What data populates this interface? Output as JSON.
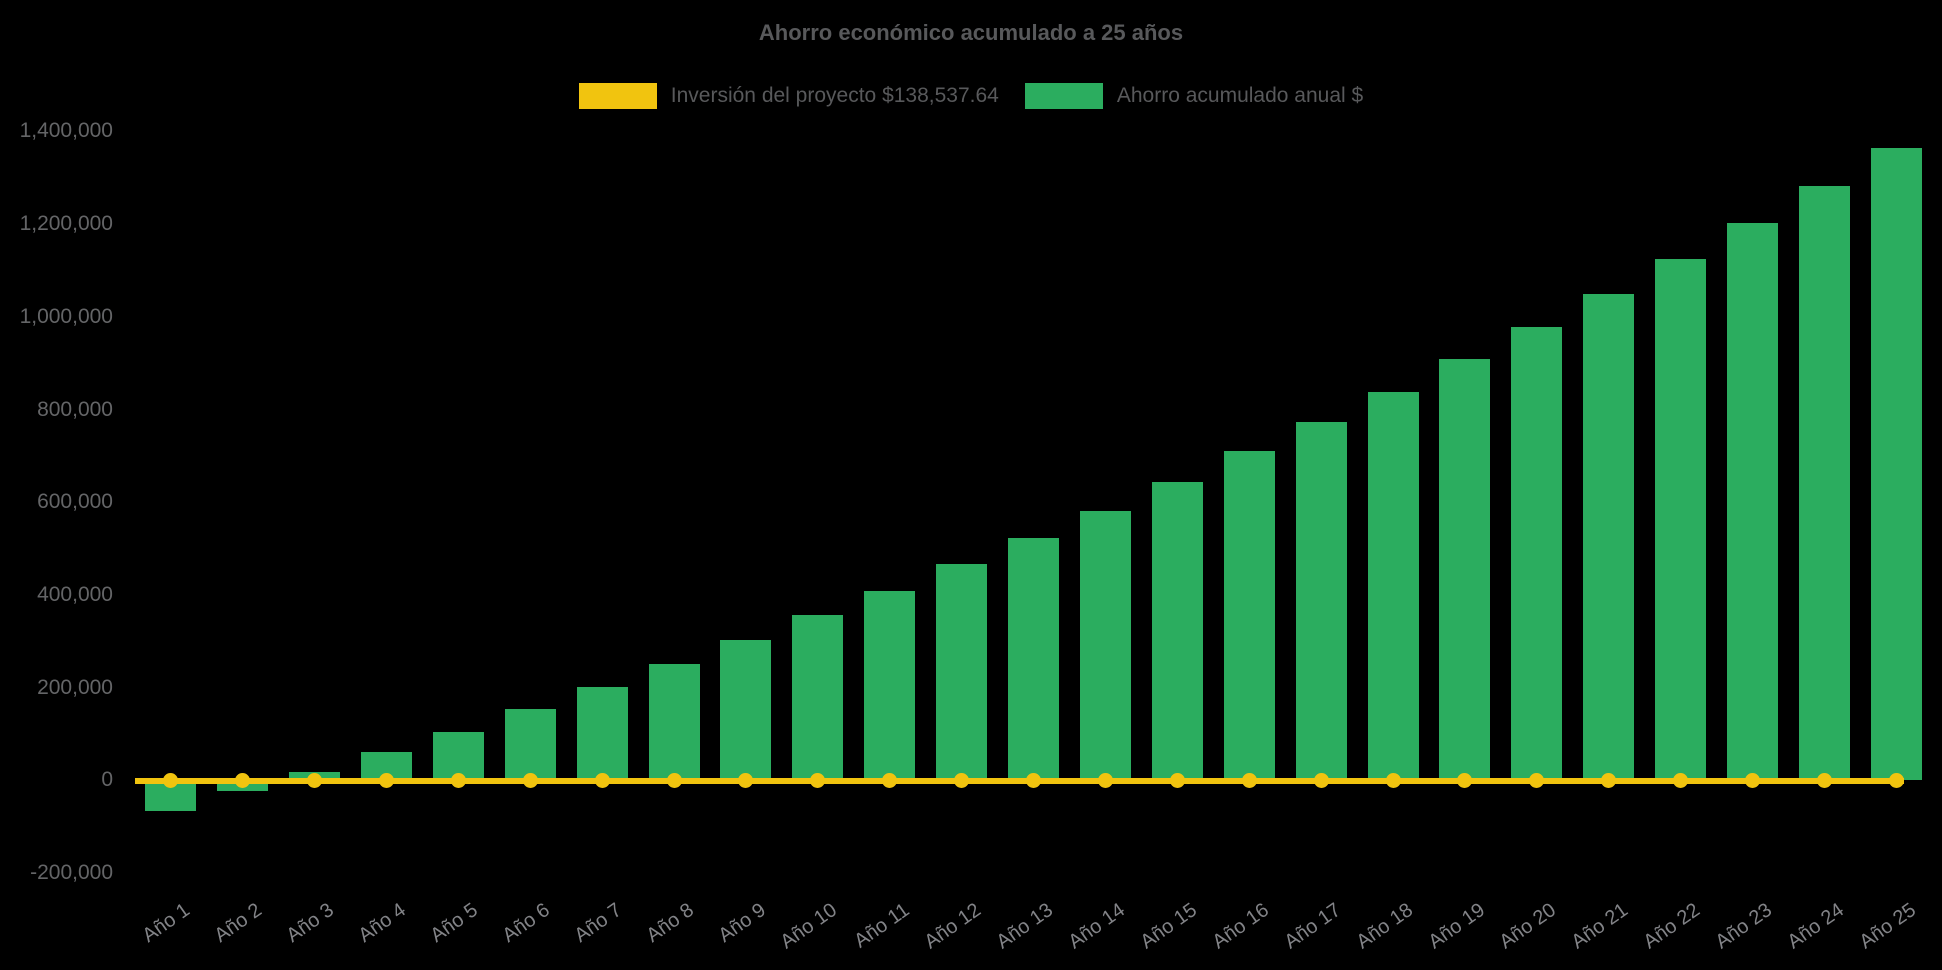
{
  "title": "Ahorro económico acumulado a 25 años",
  "legend": {
    "investment": {
      "label": "Inversión del proyecto $138,537.64",
      "color": "#F1C40F"
    },
    "savings": {
      "label": "Ahorro acumulado anual $",
      "color": "#2BAD5F"
    }
  },
  "colors": {
    "background": "#000000",
    "bar_green": "#2BAD5F",
    "line_yellow": "#F1C40F",
    "title_text": "#58595B",
    "y_label_text": "#646567",
    "x_label_text": "#828387"
  },
  "chart_data": {
    "type": "bar",
    "title": "Ahorro económico acumulado a 25 años",
    "xlabel": "",
    "ylabel": "",
    "ylim": [
      -200000,
      1400000
    ],
    "grid": false,
    "legend_position": "top",
    "x_label_rotation_deg": -35,
    "categories": [
      "Año 1",
      "Año 2",
      "Año 3",
      "Año 4",
      "Año 5",
      "Año 6",
      "Año 7",
      "Año 8",
      "Año 9",
      "Año 10",
      "Año 11",
      "Año 12",
      "Año 13",
      "Año 14",
      "Año 15",
      "Año 16",
      "Año 17",
      "Año 18",
      "Año 19",
      "Año 20",
      "Año 21",
      "Año 22",
      "Año 23",
      "Año 24",
      "Año 25"
    ],
    "series": [
      {
        "name": "Ahorro acumulado anual $",
        "type": "bar",
        "color": "#2BAD5F",
        "values": [
          -67000,
          -23000,
          17000,
          62000,
          105000,
          153000,
          202000,
          251000,
          302000,
          356000,
          409000,
          466000,
          523000,
          580000,
          643000,
          710000,
          772000,
          838000,
          908000,
          978000,
          1049000,
          1124000,
          1202000,
          1282000,
          1365000
        ]
      },
      {
        "name": "Inversión del proyecto $138,537.64",
        "type": "line",
        "color": "#F1C40F",
        "values": [
          0,
          0,
          0,
          0,
          0,
          0,
          0,
          0,
          0,
          0,
          0,
          0,
          0,
          0,
          0,
          0,
          0,
          0,
          0,
          0,
          0,
          0,
          0,
          0,
          0
        ]
      }
    ],
    "y_ticks": [
      {
        "label": "1,400,000",
        "value": 1400000
      },
      {
        "label": "1,200,000",
        "value": 1200000
      },
      {
        "label": "1,000,000",
        "value": 1000000
      },
      {
        "label": "800,000",
        "value": 800000
      },
      {
        "label": "600,000",
        "value": 600000
      },
      {
        "label": "400,000",
        "value": 400000
      },
      {
        "label": "200,000",
        "value": 200000
      },
      {
        "label": "0",
        "value": 0
      },
      {
        "label": "-200,000",
        "value": -200000
      }
    ]
  }
}
